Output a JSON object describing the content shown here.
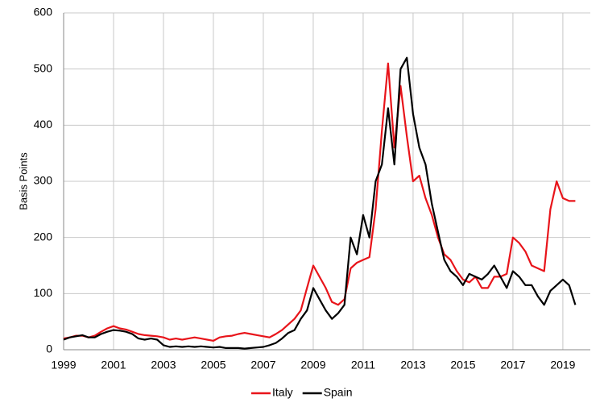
{
  "chart_data": {
    "type": "line",
    "y_label": "Basis Points",
    "x": [
      1999,
      1999.25,
      1999.5,
      1999.75,
      2000,
      2000.25,
      2000.5,
      2000.75,
      2001,
      2001.25,
      2001.5,
      2001.75,
      2002,
      2002.25,
      2002.5,
      2002.75,
      2003,
      2003.25,
      2003.5,
      2003.75,
      2004,
      2004.25,
      2004.5,
      2004.75,
      2005,
      2005.25,
      2005.5,
      2005.75,
      2006,
      2006.25,
      2006.5,
      2006.75,
      2007,
      2007.25,
      2007.5,
      2007.75,
      2008,
      2008.25,
      2008.5,
      2008.75,
      2009,
      2009.25,
      2009.5,
      2009.75,
      2010,
      2010.25,
      2010.5,
      2010.75,
      2011,
      2011.25,
      2011.5,
      2011.75,
      2012,
      2012.25,
      2012.5,
      2012.75,
      2013,
      2013.25,
      2013.5,
      2013.75,
      2014,
      2014.25,
      2014.5,
      2014.75,
      2015,
      2015.25,
      2015.5,
      2015.75,
      2016,
      2016.25,
      2016.5,
      2016.75,
      2017,
      2017.25,
      2017.5,
      2017.75,
      2018,
      2018.25,
      2018.5,
      2018.75,
      2019,
      2019.25,
      2019.5
    ],
    "series": [
      {
        "name": "Italy",
        "color": "#e8141a",
        "values": [
          20,
          22,
          25,
          25,
          22,
          25,
          32,
          38,
          42,
          38,
          36,
          32,
          28,
          26,
          25,
          24,
          22,
          18,
          20,
          18,
          20,
          22,
          20,
          18,
          16,
          22,
          24,
          25,
          28,
          30,
          28,
          26,
          24,
          22,
          28,
          35,
          45,
          55,
          70,
          110,
          150,
          130,
          110,
          85,
          80,
          90,
          145,
          155,
          160,
          165,
          250,
          390,
          510,
          360,
          470,
          380,
          300,
          310,
          270,
          240,
          200,
          170,
          160,
          140,
          125,
          120,
          130,
          110,
          110,
          130,
          130,
          135,
          200,
          190,
          175,
          150,
          145,
          140,
          250,
          300,
          270,
          265,
          265
        ]
      },
      {
        "name": "Spain",
        "color": "#000000",
        "values": [
          18,
          22,
          24,
          26,
          22,
          22,
          28,
          32,
          35,
          34,
          32,
          28,
          20,
          18,
          20,
          18,
          8,
          5,
          6,
          5,
          6,
          5,
          6,
          5,
          4,
          5,
          3,
          3,
          3,
          2,
          3,
          4,
          5,
          8,
          12,
          20,
          30,
          35,
          55,
          70,
          110,
          90,
          70,
          55,
          65,
          80,
          200,
          170,
          240,
          200,
          300,
          330,
          430,
          330,
          500,
          520,
          420,
          360,
          330,
          260,
          210,
          160,
          140,
          130,
          115,
          135,
          130,
          125,
          135,
          150,
          130,
          110,
          140,
          130,
          115,
          115,
          95,
          80,
          105,
          115,
          125,
          115,
          80
        ]
      }
    ],
    "xlim": [
      1999,
      2020.1
    ],
    "xticks": [
      1999,
      2001,
      2003,
      2005,
      2007,
      2009,
      2011,
      2013,
      2015,
      2017,
      2019
    ],
    "ylim": [
      0,
      600
    ],
    "yticks": [
      0,
      100,
      200,
      300,
      400,
      500,
      600
    ],
    "grid": true,
    "legend": "bottom"
  }
}
